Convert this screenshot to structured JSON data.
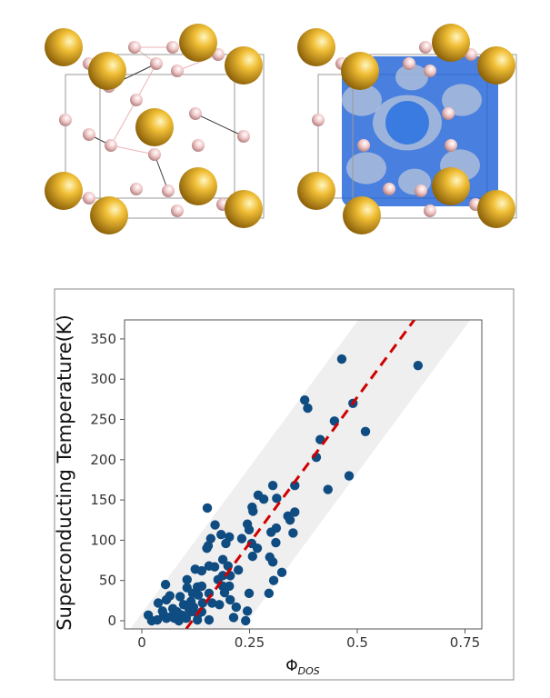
{
  "colors": {
    "points": "#0f4c81",
    "fit_line": "#d00000",
    "band": "#efefef",
    "cation": "#d9a21c",
    "hydrogen": "#e9b9b9",
    "isosurface": "#1c5fd6"
  },
  "structures": [
    {
      "view": "crystal-structure",
      "icon": "cage-lattice"
    },
    {
      "view": "crystal-structure-with-isosurface",
      "icon": "cage-lattice-blue-isosurface"
    }
  ],
  "chart_data": {
    "type": "scatter",
    "title": "",
    "xlabel": "Φ",
    "xlabel_sub": "DOS",
    "ylabel": "Superconducting Temperature(K)",
    "xlim": [
      -0.04,
      0.79
    ],
    "ylim": [
      -10,
      375
    ],
    "xticks": [
      "0",
      "0.25",
      "0.5",
      "0.75"
    ],
    "xtick_values": [
      0,
      0.25,
      0.5,
      0.75
    ],
    "yticks": [
      "0",
      "50",
      "100",
      "150",
      "200",
      "250",
      "300",
      "350"
    ],
    "ytick_values": [
      0,
      50,
      100,
      150,
      200,
      250,
      300,
      350
    ],
    "grid": false,
    "fit_line": {
      "style": "dashed",
      "slope": 725,
      "x_intercept": 0.117
    },
    "band": {
      "half_width_x": 0.13
    },
    "points": [
      [
        0.464,
        325
      ],
      [
        0.641,
        317
      ],
      [
        0.378,
        274
      ],
      [
        0.385,
        264
      ],
      [
        0.49,
        270
      ],
      [
        0.447,
        248
      ],
      [
        0.414,
        225
      ],
      [
        0.405,
        203
      ],
      [
        0.519,
        235
      ],
      [
        0.481,
        180
      ],
      [
        0.432,
        163
      ],
      [
        0.304,
        168
      ],
      [
        0.355,
        168
      ],
      [
        0.27,
        156
      ],
      [
        0.283,
        151
      ],
      [
        0.313,
        152
      ],
      [
        0.152,
        140
      ],
      [
        0.256,
        141
      ],
      [
        0.258,
        136
      ],
      [
        0.355,
        135
      ],
      [
        0.339,
        130
      ],
      [
        0.344,
        125
      ],
      [
        0.17,
        119
      ],
      [
        0.245,
        120
      ],
      [
        0.249,
        113
      ],
      [
        0.312,
        115
      ],
      [
        0.3,
        110
      ],
      [
        0.351,
        109
      ],
      [
        0.184,
        107
      ],
      [
        0.203,
        104
      ],
      [
        0.16,
        102
      ],
      [
        0.154,
        93
      ],
      [
        0.151,
        90
      ],
      [
        0.195,
        96
      ],
      [
        0.232,
        102
      ],
      [
        0.255,
        96
      ],
      [
        0.268,
        90
      ],
      [
        0.257,
        80
      ],
      [
        0.311,
        97
      ],
      [
        0.297,
        79
      ],
      [
        0.304,
        73
      ],
      [
        0.325,
        60
      ],
      [
        0.306,
        50
      ],
      [
        0.295,
        34
      ],
      [
        0.249,
        34
      ],
      [
        0.188,
        76
      ],
      [
        0.156,
        68
      ],
      [
        0.169,
        67
      ],
      [
        0.2,
        68
      ],
      [
        0.124,
        64
      ],
      [
        0.139,
        62
      ],
      [
        0.224,
        63
      ],
      [
        0.188,
        56
      ],
      [
        0.205,
        56
      ],
      [
        0.177,
        51
      ],
      [
        0.203,
        43
      ],
      [
        0.188,
        43
      ],
      [
        0.192,
        35
      ],
      [
        0.205,
        26
      ],
      [
        0.105,
        51
      ],
      [
        0.055,
        45
      ],
      [
        0.105,
        41
      ],
      [
        0.129,
        42
      ],
      [
        0.139,
        43
      ],
      [
        0.118,
        34
      ],
      [
        0.131,
        32
      ],
      [
        0.065,
        31
      ],
      [
        0.057,
        26
      ],
      [
        0.089,
        30
      ],
      [
        0.156,
        34
      ],
      [
        0.163,
        22
      ],
      [
        0.114,
        24
      ],
      [
        0.038,
        22
      ],
      [
        0.219,
        17
      ],
      [
        0.245,
        12
      ],
      [
        0.241,
        0
      ],
      [
        0.213,
        4
      ],
      [
        0.156,
        1
      ],
      [
        0.129,
        1
      ],
      [
        0.015,
        7
      ],
      [
        0.023,
        0
      ],
      [
        0.036,
        1
      ],
      [
        0.051,
        7
      ],
      [
        0.057,
        3
      ],
      [
        0.072,
        15
      ],
      [
        0.082,
        11
      ],
      [
        0.093,
        7
      ],
      [
        0.103,
        3
      ],
      [
        0.114,
        11
      ],
      [
        0.12,
        17
      ],
      [
        0.086,
        0
      ],
      [
        0.141,
        22
      ],
      [
        0.139,
        11
      ],
      [
        0.076,
        3
      ],
      [
        0.097,
        20
      ],
      [
        0.11,
        14
      ],
      [
        0.13,
        8
      ],
      [
        0.068,
        5
      ],
      [
        0.048,
        12
      ],
      [
        0.18,
        20
      ]
    ]
  }
}
